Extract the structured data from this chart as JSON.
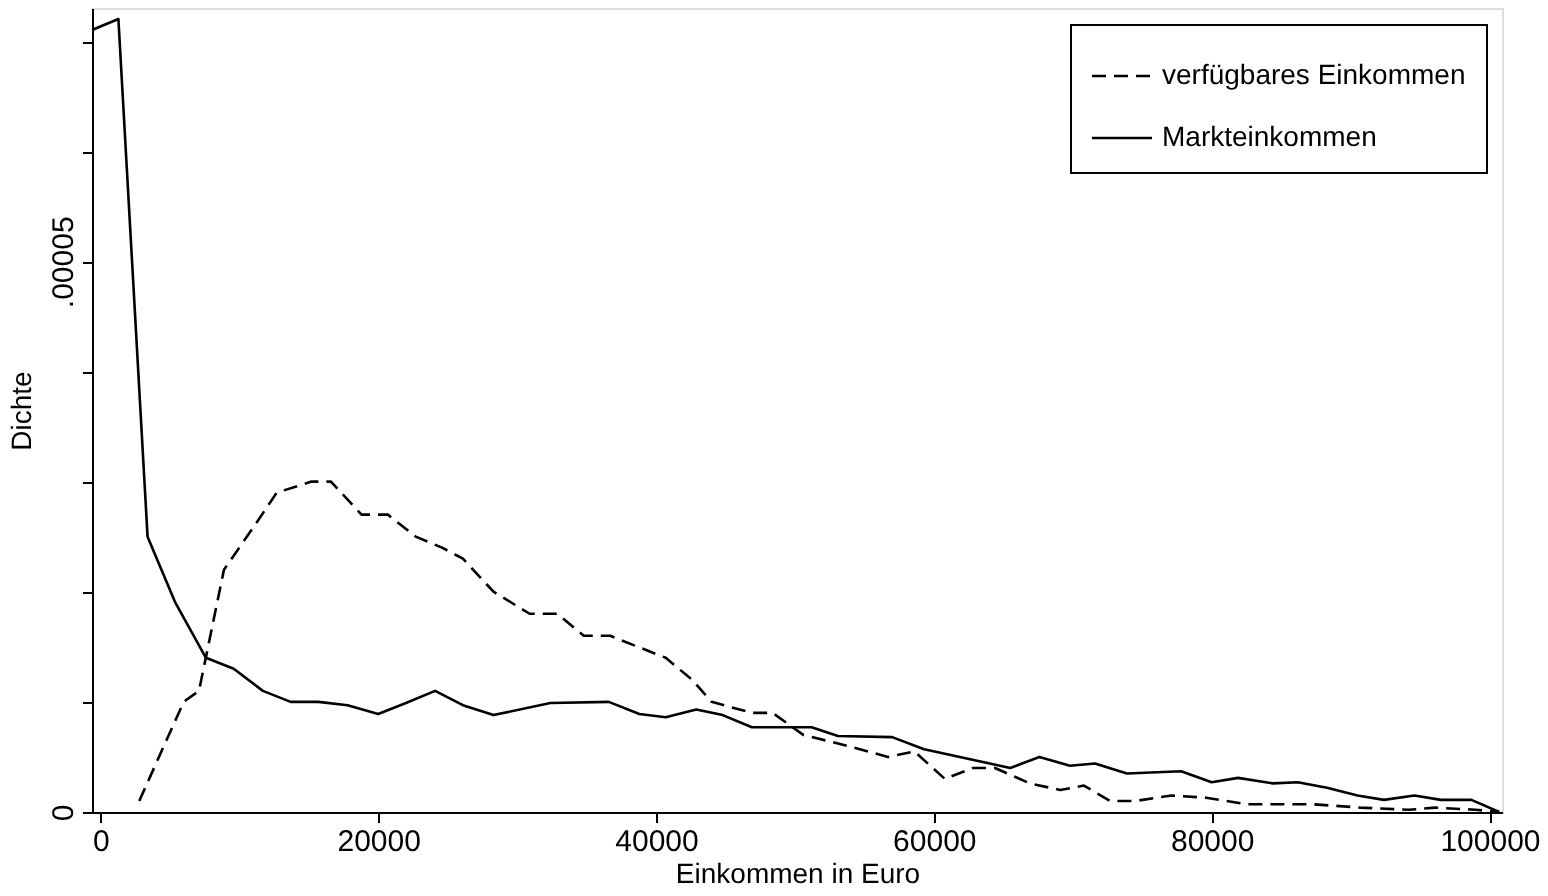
{
  "chart_data": {
    "type": "line",
    "xlabel": "Einkommen in Euro",
    "ylabel": "Dichte",
    "xlim": [
      -600,
      100900
    ],
    "xticks": [
      0,
      20000,
      40000,
      60000,
      80000,
      100000
    ],
    "ylim": [
      0,
      7.3e-05
    ],
    "yticks": [
      0,
      {
        "value": 1e-05,
        "label": null
      },
      {
        "value": 2e-05,
        "label": null
      },
      {
        "value": 3e-05,
        "label": null
      },
      {
        "value": 4e-05,
        "label": null
      },
      {
        "value": 5e-05,
        "label": ".00005"
      },
      {
        "value": 6e-05,
        "label": null
      },
      {
        "value": 7e-05,
        "label": null
      }
    ],
    "grid": false,
    "legend": "top right",
    "marker": "none",
    "series": [
      {
        "name": "verfügbares Einkommen",
        "color": "#000000",
        "line_style": "dashed",
        "x": [
          2800,
          6000,
          7100,
          8900,
          11100,
          12700,
          15200,
          16600,
          18800,
          20700,
          22700,
          24600,
          26100,
          28300,
          30900,
          32900,
          34800,
          36700,
          40700,
          42600,
          44000,
          46900,
          48400,
          50600,
          53800,
          56700,
          58600,
          60800,
          62800,
          64400,
          66900,
          69100,
          70800,
          72700,
          74500,
          77100,
          79600,
          82500,
          87300,
          90700,
          94200,
          96100,
          99000,
          100700
        ],
        "values": [
          1e-06,
          1e-05,
          1.1e-05,
          2.2e-05,
          2.6e-05,
          2.9e-05,
          3e-05,
          3e-05,
          2.7e-05,
          2.7e-05,
          2.5e-05,
          2.4e-05,
          2.3e-05,
          2e-05,
          1.8e-05,
          1.8e-05,
          1.6e-05,
          1.6e-05,
          1.4e-05,
          1.2e-05,
          1e-05,
          9e-06,
          9e-06,
          7e-06,
          6e-06,
          5e-06,
          5.5e-06,
          3e-06,
          4e-06,
          4e-06,
          2.6e-06,
          2e-06,
          2.4e-06,
          1e-06,
          1e-06,
          1.5e-06,
          1.3e-06,
          7e-07,
          7e-07,
          4e-07,
          2e-07,
          4e-07,
          2e-07,
          0
        ]
      },
      {
        "name": "Markteinkommen",
        "color": "#000000",
        "line_style": "solid",
        "x": [
          -600,
          1300,
          3400,
          5400,
          7600,
          9600,
          11700,
          13700,
          15700,
          17800,
          20000,
          22000,
          24100,
          26100,
          28300,
          32400,
          36600,
          38800,
          40700,
          42900,
          44800,
          46900,
          51200,
          53100,
          57000,
          59300,
          65500,
          67600,
          69800,
          71600,
          73900,
          77800,
          80000,
          81900,
          84400,
          86200,
          88300,
          90500,
          92400,
          94600,
          96500,
          98700,
          100700
        ],
        "values": [
          7.1e-05,
          7.2e-05,
          2.5e-05,
          1.9e-05,
          1.4e-05,
          1.3e-05,
          1.1e-05,
          1e-05,
          1e-05,
          9.7e-06,
          8.9e-06,
          9.9e-06,
          1.1e-05,
          9.7e-06,
          8.8e-06,
          9.9e-06,
          1e-05,
          8.9e-06,
          8.6e-06,
          9.3e-06,
          8.8e-06,
          7.7e-06,
          7.7e-06,
          6.9e-06,
          6.8e-06,
          5.7e-06,
          4e-06,
          5e-06,
          4.2e-06,
          4.4e-06,
          3.5e-06,
          3.7e-06,
          2.7e-06,
          3.1e-06,
          2.6e-06,
          2.7e-06,
          2.2e-06,
          1.5e-06,
          1.1e-06,
          1.5e-06,
          1.1e-06,
          1.1e-06,
          0
        ]
      }
    ]
  }
}
